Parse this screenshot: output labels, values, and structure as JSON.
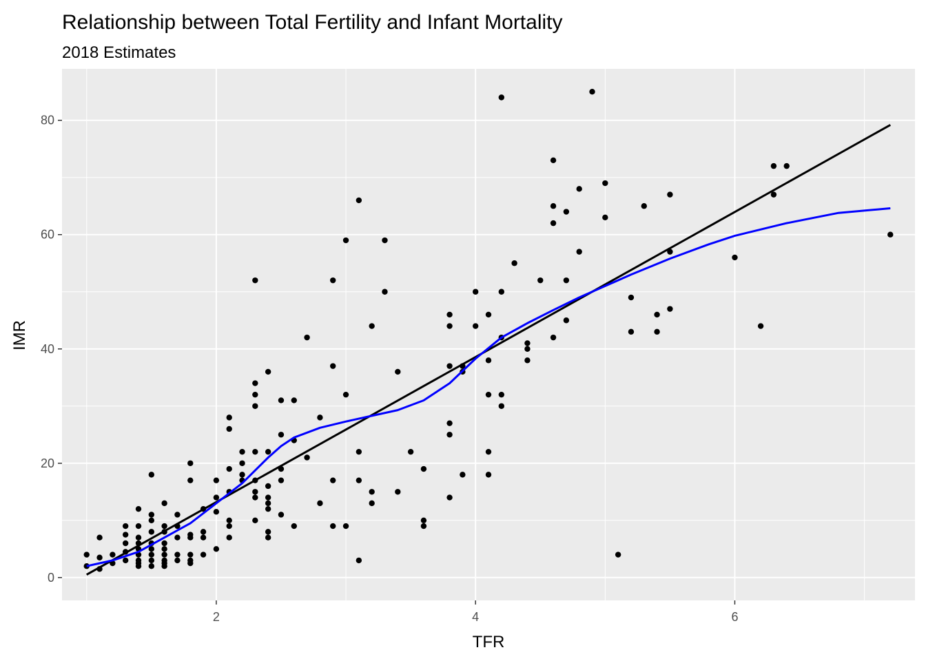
{
  "chart_data": {
    "type": "scatter",
    "title": "Relationship between Total Fertility and Infant Mortality",
    "subtitle": "2018 Estimates",
    "xlabel": "TFR",
    "ylabel": "IMR",
    "xlim": [
      0.81,
      7.39
    ],
    "ylim": [
      -4,
      89
    ],
    "x_ticks": [
      2,
      4,
      6
    ],
    "y_ticks": [
      0,
      20,
      40,
      60,
      80
    ],
    "x_minor": [
      1,
      3,
      5,
      7
    ],
    "y_minor": [
      10,
      30,
      50,
      70
    ],
    "grid": true,
    "colors": {
      "panel": "#EBEBEB",
      "grid": "#FFFFFF",
      "points": "#000000",
      "lm_line": "#000000",
      "loess_line": "#0000FF"
    },
    "points": [
      [
        1.0,
        2
      ],
      [
        1.0,
        4
      ],
      [
        1.1,
        1.5
      ],
      [
        1.1,
        3.5
      ],
      [
        1.1,
        7
      ],
      [
        1.2,
        2.5
      ],
      [
        1.2,
        4
      ],
      [
        1.3,
        3
      ],
      [
        1.3,
        4.5
      ],
      [
        1.3,
        6
      ],
      [
        1.3,
        7.5
      ],
      [
        1.3,
        9
      ],
      [
        1.4,
        2
      ],
      [
        1.4,
        2.5
      ],
      [
        1.4,
        3
      ],
      [
        1.4,
        4
      ],
      [
        1.4,
        5
      ],
      [
        1.4,
        6
      ],
      [
        1.4,
        7
      ],
      [
        1.4,
        9
      ],
      [
        1.4,
        12
      ],
      [
        1.5,
        2
      ],
      [
        1.5,
        3
      ],
      [
        1.5,
        4
      ],
      [
        1.5,
        5
      ],
      [
        1.5,
        6
      ],
      [
        1.5,
        8
      ],
      [
        1.5,
        10
      ],
      [
        1.5,
        11
      ],
      [
        1.5,
        18
      ],
      [
        1.6,
        2
      ],
      [
        1.6,
        2.5
      ],
      [
        1.6,
        3
      ],
      [
        1.6,
        4
      ],
      [
        1.6,
        5
      ],
      [
        1.6,
        6
      ],
      [
        1.6,
        8
      ],
      [
        1.6,
        9
      ],
      [
        1.6,
        13
      ],
      [
        1.7,
        3
      ],
      [
        1.7,
        4
      ],
      [
        1.7,
        7
      ],
      [
        1.7,
        9
      ],
      [
        1.7,
        11
      ],
      [
        1.8,
        2.5
      ],
      [
        1.8,
        3
      ],
      [
        1.8,
        4
      ],
      [
        1.8,
        7
      ],
      [
        1.8,
        7.5
      ],
      [
        1.8,
        17
      ],
      [
        1.8,
        20
      ],
      [
        1.9,
        4
      ],
      [
        1.9,
        7
      ],
      [
        1.9,
        8
      ],
      [
        1.9,
        12
      ],
      [
        2.0,
        5
      ],
      [
        2.0,
        11.5
      ],
      [
        2.0,
        14
      ],
      [
        2.0,
        17
      ],
      [
        2.1,
        7
      ],
      [
        2.1,
        9
      ],
      [
        2.1,
        10
      ],
      [
        2.1,
        15
      ],
      [
        2.1,
        19
      ],
      [
        2.1,
        26
      ],
      [
        2.1,
        28
      ],
      [
        2.2,
        17
      ],
      [
        2.2,
        18
      ],
      [
        2.2,
        20
      ],
      [
        2.2,
        22
      ],
      [
        2.3,
        10
      ],
      [
        2.3,
        14
      ],
      [
        2.3,
        15
      ],
      [
        2.3,
        17
      ],
      [
        2.3,
        22
      ],
      [
        2.3,
        30
      ],
      [
        2.3,
        32
      ],
      [
        2.3,
        34
      ],
      [
        2.3,
        52
      ],
      [
        2.4,
        7
      ],
      [
        2.4,
        8
      ],
      [
        2.4,
        12
      ],
      [
        2.4,
        13
      ],
      [
        2.4,
        14
      ],
      [
        2.4,
        16
      ],
      [
        2.4,
        22
      ],
      [
        2.4,
        36
      ],
      [
        2.5,
        11
      ],
      [
        2.5,
        17
      ],
      [
        2.5,
        19
      ],
      [
        2.5,
        25
      ],
      [
        2.5,
        31
      ],
      [
        2.6,
        9
      ],
      [
        2.6,
        24
      ],
      [
        2.6,
        31
      ],
      [
        2.7,
        21
      ],
      [
        2.7,
        42
      ],
      [
        2.8,
        13
      ],
      [
        2.8,
        28
      ],
      [
        2.9,
        9
      ],
      [
        2.9,
        17
      ],
      [
        2.9,
        37
      ],
      [
        2.9,
        52
      ],
      [
        3.0,
        9
      ],
      [
        3.0,
        32
      ],
      [
        3.0,
        59
      ],
      [
        3.1,
        3
      ],
      [
        3.1,
        17
      ],
      [
        3.1,
        22
      ],
      [
        3.1,
        66
      ],
      [
        3.2,
        13
      ],
      [
        3.2,
        15
      ],
      [
        3.2,
        44
      ],
      [
        3.3,
        50
      ],
      [
        3.3,
        59
      ],
      [
        3.4,
        15
      ],
      [
        3.4,
        36
      ],
      [
        3.5,
        22
      ],
      [
        3.6,
        9
      ],
      [
        3.6,
        10
      ],
      [
        3.6,
        19
      ],
      [
        3.8,
        14
      ],
      [
        3.8,
        25
      ],
      [
        3.8,
        27
      ],
      [
        3.8,
        37
      ],
      [
        3.8,
        44
      ],
      [
        3.8,
        46
      ],
      [
        3.9,
        18
      ],
      [
        3.9,
        36
      ],
      [
        3.9,
        37
      ],
      [
        4.0,
        44
      ],
      [
        4.0,
        50
      ],
      [
        4.1,
        18
      ],
      [
        4.1,
        22
      ],
      [
        4.1,
        32
      ],
      [
        4.1,
        38
      ],
      [
        4.1,
        46
      ],
      [
        4.2,
        30
      ],
      [
        4.2,
        32
      ],
      [
        4.2,
        42
      ],
      [
        4.2,
        50
      ],
      [
        4.2,
        84
      ],
      [
        4.3,
        55
      ],
      [
        4.4,
        38
      ],
      [
        4.4,
        40
      ],
      [
        4.4,
        41
      ],
      [
        4.5,
        52
      ],
      [
        4.6,
        42
      ],
      [
        4.6,
        62
      ],
      [
        4.6,
        65
      ],
      [
        4.6,
        73
      ],
      [
        4.7,
        45
      ],
      [
        4.7,
        52
      ],
      [
        4.7,
        64
      ],
      [
        4.8,
        57
      ],
      [
        4.8,
        68
      ],
      [
        4.9,
        85
      ],
      [
        5.0,
        63
      ],
      [
        5.0,
        69
      ],
      [
        5.1,
        4
      ],
      [
        5.2,
        43
      ],
      [
        5.2,
        49
      ],
      [
        5.3,
        65
      ],
      [
        5.4,
        43
      ],
      [
        5.4,
        46
      ],
      [
        5.5,
        47
      ],
      [
        5.5,
        57
      ],
      [
        5.5,
        67
      ],
      [
        6.0,
        56
      ],
      [
        6.2,
        44
      ],
      [
        6.3,
        67
      ],
      [
        6.3,
        72
      ],
      [
        6.4,
        72
      ],
      [
        7.2,
        60
      ]
    ],
    "lm_line": [
      [
        1.0,
        0.5
      ],
      [
        7.2,
        79.2
      ]
    ],
    "loess_line": [
      [
        1.0,
        2
      ],
      [
        1.2,
        3
      ],
      [
        1.4,
        4.5
      ],
      [
        1.6,
        7
      ],
      [
        1.8,
        9.5
      ],
      [
        2.0,
        13
      ],
      [
        2.2,
        16.5
      ],
      [
        2.4,
        21
      ],
      [
        2.5,
        23
      ],
      [
        2.6,
        24.5
      ],
      [
        2.8,
        26.2
      ],
      [
        3.0,
        27.3
      ],
      [
        3.2,
        28.3
      ],
      [
        3.4,
        29.3
      ],
      [
        3.6,
        31
      ],
      [
        3.8,
        34
      ],
      [
        4.0,
        38.3
      ],
      [
        4.2,
        42
      ],
      [
        4.4,
        44.5
      ],
      [
        4.6,
        46.8
      ],
      [
        4.8,
        49
      ],
      [
        5.0,
        51
      ],
      [
        5.2,
        53
      ],
      [
        5.5,
        55.8
      ],
      [
        5.8,
        58.3
      ],
      [
        6.0,
        59.8
      ],
      [
        6.4,
        62
      ],
      [
        6.8,
        63.8
      ],
      [
        7.2,
        64.6
      ]
    ]
  }
}
